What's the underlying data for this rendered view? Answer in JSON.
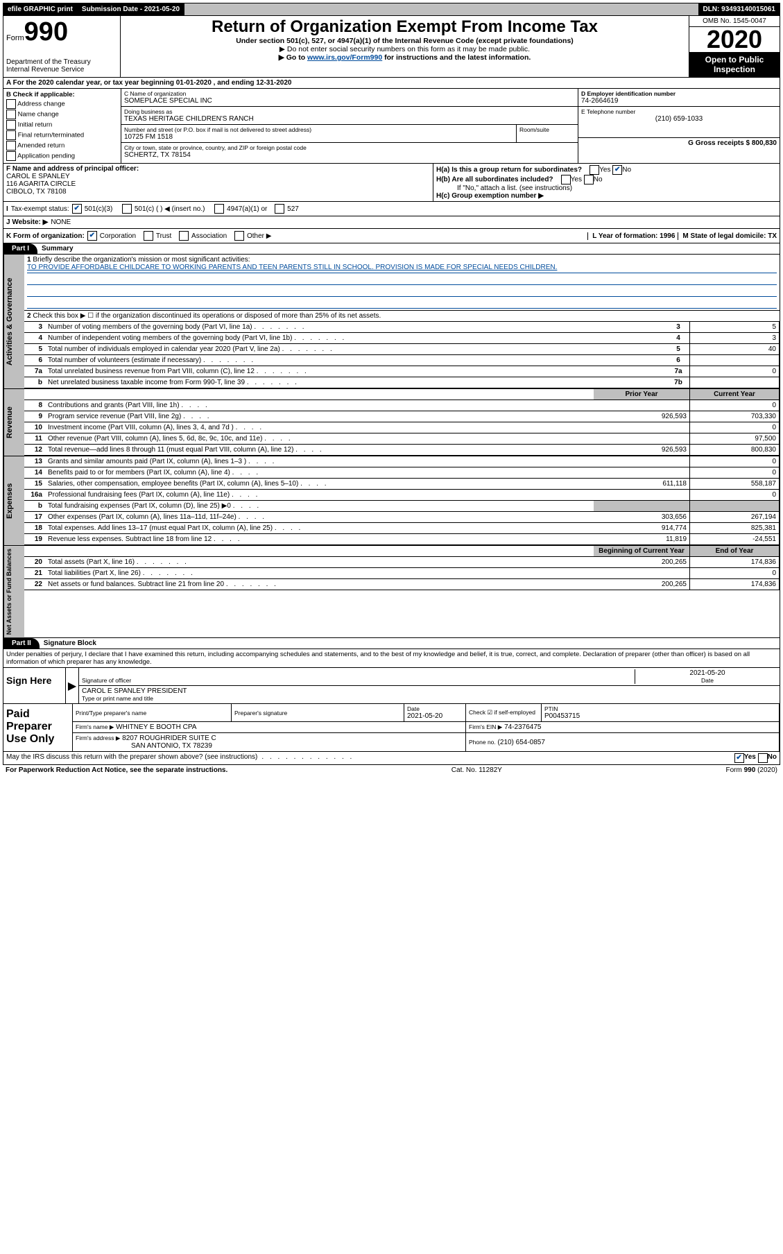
{
  "topbar": {
    "efile": "efile GRAPHIC print",
    "subdate_label": "Submission Date - 2021-05-20",
    "dln_label": "DLN: 93493140015061"
  },
  "header": {
    "form_small": "Form",
    "form_num": "990",
    "dept": "Department of the Treasury\nInternal Revenue Service",
    "title": "Return of Organization Exempt From Income Tax",
    "sub1": "Under section 501(c), 527, or 4947(a)(1) of the Internal Revenue Code (except private foundations)",
    "sub2": "▶ Do not enter social security numbers on this form as it may be made public.",
    "sub3_pre": "▶ Go to ",
    "sub3_link": "www.irs.gov/Form990",
    "sub3_post": " for instructions and the latest information.",
    "omb": "OMB No. 1545-0047",
    "year": "2020",
    "open": "Open to Public Inspection"
  },
  "sectionA": "A For the 2020 calendar year, or tax year beginning 01-01-2020   , and ending 12-31-2020",
  "checkcol": {
    "hdr": "B Check if applicable:",
    "c1": "Address change",
    "c2": "Name change",
    "c3": "Initial return",
    "c4": "Final return/terminated",
    "c5": "Amended return",
    "c6": "Application pending"
  },
  "entity": {
    "name_lbl": "C Name of organization",
    "name": "SOMEPLACE SPECIAL INC",
    "dba_lbl": "Doing business as",
    "dba": "TEXAS HERITAGE CHILDREN'S RANCH",
    "street_lbl": "Number and street (or P.O. box if mail is not delivered to street address)",
    "street": "10725 FM 1518",
    "room_lbl": "Room/suite",
    "city_lbl": "City or town, state or province, country, and ZIP or foreign postal code",
    "city": "SCHERTZ, TX  78154"
  },
  "rightcol": {
    "ein_lbl": "D Employer identification number",
    "ein": "74-2664619",
    "phone_lbl": "E Telephone number",
    "phone": "(210) 659-1033",
    "gross_lbl": "G Gross receipts $ 800,830"
  },
  "officer": {
    "lbl": "F Name and address of principal officer:",
    "name": "CAROL E SPANLEY",
    "addr1": "116 AGARITA CIRCLE",
    "addr2": "CIBOLO, TX  78108",
    "ha": "H(a)  Is this a group return for subordinates?",
    "hb": "H(b)  Are all subordinates included?",
    "hb_note": "If \"No,\" attach a list. (see instructions)",
    "hc": "H(c)  Group exemption number ▶"
  },
  "status": {
    "lbl": "Tax-exempt status:",
    "c1": "501(c)(3)",
    "c2": "501(c) (  ) ◀ (insert no.)",
    "c3": "4947(a)(1) or",
    "c4": "527"
  },
  "website": {
    "lbl": "J  Website: ▶",
    "val": "NONE"
  },
  "korg": {
    "lbl": "K Form of organization:",
    "c1": "Corporation",
    "c2": "Trust",
    "c3": "Association",
    "c4": "Other ▶",
    "l_lbl": "L Year of formation: 1996",
    "m_lbl": "M State of legal domicile: TX"
  },
  "part1": {
    "hdr": "Part I",
    "title": "Summary",
    "vlabel1": "Activities & Governance",
    "vlabel2": "Revenue",
    "vlabel3": "Expenses",
    "vlabel4": "Net Assets or Fund Balances",
    "q1": "Briefly describe the organization's mission or most significant activities:",
    "mission": "TO PROVIDE AFFORDABLE CHILDCARE TO WORKING PARENTS AND TEEN PARENTS STILL IN SCHOOL. PROVISION IS MADE FOR SPECIAL NEEDS CHILDREN.",
    "q2": "Check this box ▶ ☐ if the organization discontinued its operations or disposed of more than 25% of its net assets.",
    "rows_ag": [
      {
        "n": "3",
        "d": "Number of voting members of the governing body (Part VI, line 1a)",
        "box": "3",
        "v": "5"
      },
      {
        "n": "4",
        "d": "Number of independent voting members of the governing body (Part VI, line 1b)",
        "box": "4",
        "v": "3"
      },
      {
        "n": "5",
        "d": "Total number of individuals employed in calendar year 2020 (Part V, line 2a)",
        "box": "5",
        "v": "40"
      },
      {
        "n": "6",
        "d": "Total number of volunteers (estimate if necessary)",
        "box": "6",
        "v": ""
      },
      {
        "n": "7a",
        "d": "Total unrelated business revenue from Part VIII, column (C), line 12",
        "box": "7a",
        "v": "0"
      },
      {
        "n": "b",
        "d": "Net unrelated business taxable income from Form 990-T, line 39",
        "box": "7b",
        "v": ""
      }
    ],
    "prior_lbl": "Prior Year",
    "curr_lbl": "Current Year",
    "rows_rev": [
      {
        "n": "8",
        "d": "Contributions and grants (Part VIII, line 1h)",
        "p": "",
        "c": "0"
      },
      {
        "n": "9",
        "d": "Program service revenue (Part VIII, line 2g)",
        "p": "926,593",
        "c": "703,330"
      },
      {
        "n": "10",
        "d": "Investment income (Part VIII, column (A), lines 3, 4, and 7d )",
        "p": "",
        "c": "0"
      },
      {
        "n": "11",
        "d": "Other revenue (Part VIII, column (A), lines 5, 6d, 8c, 9c, 10c, and 11e)",
        "p": "",
        "c": "97,500"
      },
      {
        "n": "12",
        "d": "Total revenue—add lines 8 through 11 (must equal Part VIII, column (A), line 12)",
        "p": "926,593",
        "c": "800,830"
      }
    ],
    "rows_exp": [
      {
        "n": "13",
        "d": "Grants and similar amounts paid (Part IX, column (A), lines 1–3 )",
        "p": "",
        "c": "0"
      },
      {
        "n": "14",
        "d": "Benefits paid to or for members (Part IX, column (A), line 4)",
        "p": "",
        "c": "0"
      },
      {
        "n": "15",
        "d": "Salaries, other compensation, employee benefits (Part IX, column (A), lines 5–10)",
        "p": "611,118",
        "c": "558,187"
      },
      {
        "n": "16a",
        "d": "Professional fundraising fees (Part IX, column (A), line 11e)",
        "p": "",
        "c": "0"
      },
      {
        "n": "b",
        "d": "Total fundraising expenses (Part IX, column (D), line 25) ▶0",
        "p": "shade",
        "c": "shade"
      },
      {
        "n": "17",
        "d": "Other expenses (Part IX, column (A), lines 11a–11d, 11f–24e)",
        "p": "303,656",
        "c": "267,194"
      },
      {
        "n": "18",
        "d": "Total expenses. Add lines 13–17 (must equal Part IX, column (A), line 25)",
        "p": "914,774",
        "c": "825,381"
      },
      {
        "n": "19",
        "d": "Revenue less expenses. Subtract line 18 from line 12",
        "p": "11,819",
        "c": "-24,551"
      }
    ],
    "beg_lbl": "Beginning of Current Year",
    "end_lbl": "End of Year",
    "rows_net": [
      {
        "n": "20",
        "d": "Total assets (Part X, line 16)",
        "p": "200,265",
        "c": "174,836"
      },
      {
        "n": "21",
        "d": "Total liabilities (Part X, line 26)",
        "p": "",
        "c": "0"
      },
      {
        "n": "22",
        "d": "Net assets or fund balances. Subtract line 21 from line 20",
        "p": "200,265",
        "c": "174,836"
      }
    ]
  },
  "part2": {
    "hdr": "Part II",
    "title": "Signature Block",
    "penalty": "Under penalties of perjury, I declare that I have examined this return, including accompanying schedules and statements, and to the best of my knowledge and belief, it is true, correct, and complete. Declaration of preparer (other than officer) is based on all information of which preparer has any knowledge.",
    "sign_here": "Sign Here",
    "sig_officer_lbl": "Signature of officer",
    "sig_date": "2021-05-20",
    "sig_date_lbl": "Date",
    "sig_name": "CAROL E SPANLEY PRESIDENT",
    "sig_name_lbl": "Type or print name and title",
    "paid_lbl": "Paid Preparer Use Only",
    "prep_name_lbl": "Print/Type preparer's name",
    "prep_sig_lbl": "Preparer's signature",
    "prep_date_lbl": "Date",
    "prep_date": "2021-05-20",
    "prep_check_lbl": "Check ☑ if self-employed",
    "ptin_lbl": "PTIN",
    "ptin": "P00453715",
    "firm_name_lbl": "Firm's name    ▶",
    "firm_name": "WHITNEY E BOOTH CPA",
    "firm_ein_lbl": "Firm's EIN ▶",
    "firm_ein": "74-2376475",
    "firm_addr_lbl": "Firm's address ▶",
    "firm_addr1": "8207 ROUGHRIDER SUITE C",
    "firm_addr2": "SAN ANTONIO, TX  78239",
    "firm_phone_lbl": "Phone no.",
    "firm_phone": "(210) 654-0857",
    "discuss": "May the IRS discuss this return with the preparer shown above? (see instructions)"
  },
  "footer": {
    "left": "For Paperwork Reduction Act Notice, see the separate instructions.",
    "mid": "Cat. No. 11282Y",
    "right": "Form 990 (2020)"
  }
}
